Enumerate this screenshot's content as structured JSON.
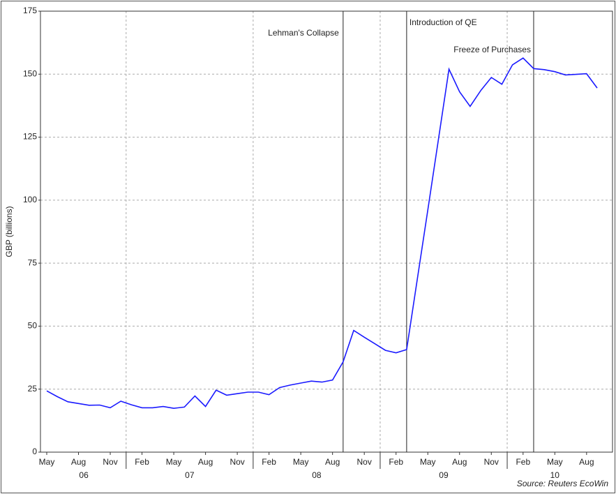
{
  "chart_data": {
    "type": "line",
    "y_label": "GBP (billions)",
    "source": "Source: Reuters EcoWin",
    "x": [
      "2006-05",
      "2006-06",
      "2006-07",
      "2006-08",
      "2006-09",
      "2006-10",
      "2006-11",
      "2006-12",
      "2007-01",
      "2007-02",
      "2007-03",
      "2007-04",
      "2007-05",
      "2007-06",
      "2007-07",
      "2007-08",
      "2007-09",
      "2007-10",
      "2007-11",
      "2007-12",
      "2008-01",
      "2008-02",
      "2008-03",
      "2008-04",
      "2008-05",
      "2008-06",
      "2008-07",
      "2008-08",
      "2008-09",
      "2008-10",
      "2008-11",
      "2008-12",
      "2009-01",
      "2009-02",
      "2009-03",
      "2009-04",
      "2009-05",
      "2009-06",
      "2009-07",
      "2009-08",
      "2009-09",
      "2009-10",
      "2009-11",
      "2009-12",
      "2010-01",
      "2010-02",
      "2010-03",
      "2010-04",
      "2010-05",
      "2010-06",
      "2010-07",
      "2010-08",
      "2010-09"
    ],
    "series": [
      {
        "color": "#1a1aff",
        "values": [
          24.3,
          22,
          20,
          19.3,
          18.6,
          18.7,
          17.6,
          20.2,
          18.8,
          17.6,
          17.6,
          18.1,
          17.4,
          17.9,
          22.3,
          18.1,
          24.6,
          22.6,
          23.2,
          23.8,
          23.8,
          22.8,
          25.6,
          26.6,
          27.4,
          28.2,
          27.8,
          28.6,
          35.8,
          48.3,
          45.6,
          43,
          40.4,
          39.4,
          40.7,
          68.5,
          96,
          124,
          152,
          143,
          137.2,
          143.5,
          148.7,
          146,
          153.7,
          156.4,
          152.2,
          151.8,
          151,
          149.7,
          149.9,
          150.2,
          144.5
        ]
      }
    ],
    "xlim": [
      "2006-05",
      "2010-09"
    ],
    "ylim": [
      0,
      175
    ],
    "yticks": [
      0,
      25,
      50,
      75,
      100,
      125,
      150,
      175
    ],
    "xticks": [
      {
        "value": "2006-05",
        "label": "May"
      },
      {
        "value": "2006-08",
        "label": "Aug"
      },
      {
        "value": "2006-11",
        "label": "Nov"
      },
      {
        "value": "2007-02",
        "label": "Feb"
      },
      {
        "value": "2007-05",
        "label": "May"
      },
      {
        "value": "2007-08",
        "label": "Aug"
      },
      {
        "value": "2007-11",
        "label": "Nov"
      },
      {
        "value": "2008-02",
        "label": "Feb"
      },
      {
        "value": "2008-05",
        "label": "May"
      },
      {
        "value": "2008-08",
        "label": "Aug"
      },
      {
        "value": "2008-11",
        "label": "Nov"
      },
      {
        "value": "2009-02",
        "label": "Feb"
      },
      {
        "value": "2009-05",
        "label": "May"
      },
      {
        "value": "2009-08",
        "label": "Aug"
      },
      {
        "value": "2009-11",
        "label": "Nov"
      },
      {
        "value": "2010-02",
        "label": "Feb"
      },
      {
        "value": "2010-05",
        "label": "May"
      },
      {
        "value": "2010-08",
        "label": "Aug"
      }
    ],
    "year_ticks": [
      {
        "value": "2006",
        "label": "06"
      },
      {
        "value": "2007",
        "label": "07"
      },
      {
        "value": "2008",
        "label": "08"
      },
      {
        "value": "2009",
        "label": "09"
      },
      {
        "value": "2010",
        "label": "10"
      }
    ],
    "events": [
      {
        "x": "2008-09",
        "label": "Lehman's Collapse"
      },
      {
        "x": "2009-03",
        "label": "Introduction of QE"
      },
      {
        "x": "2010-03",
        "label": "Freeze of Purchases"
      }
    ],
    "grid": true
  }
}
